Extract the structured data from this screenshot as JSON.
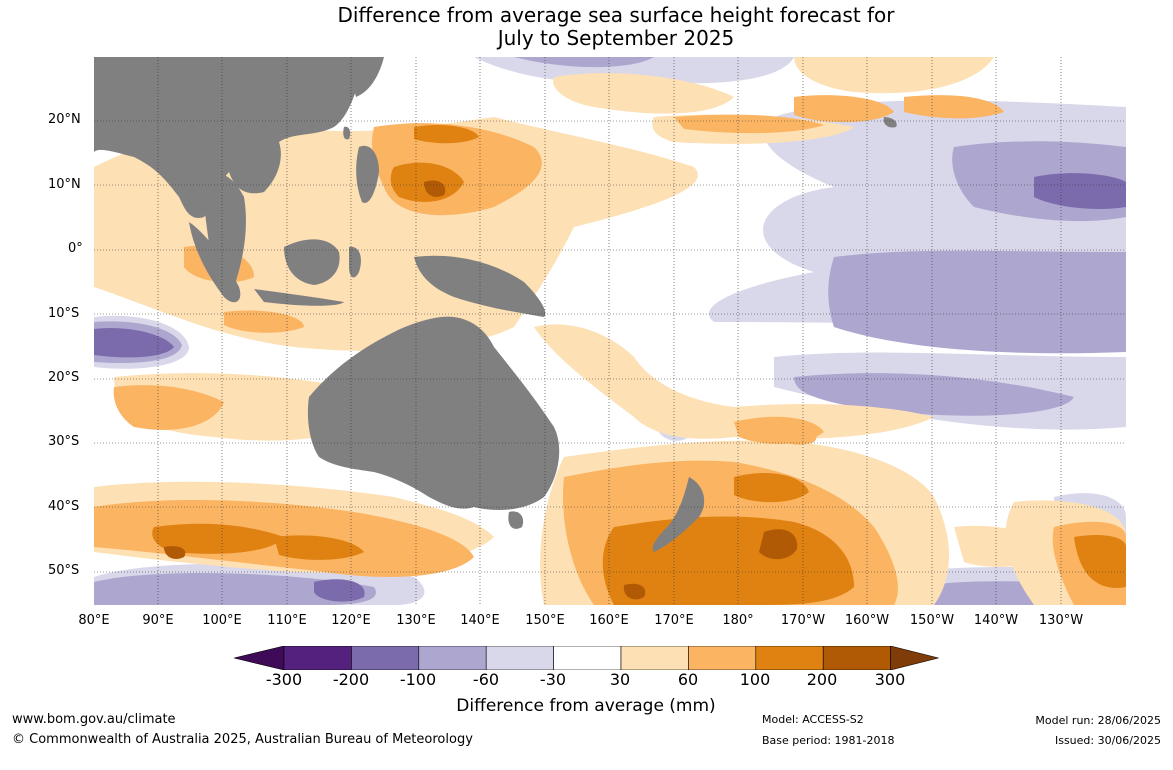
{
  "title_line1": "Difference from average sea surface height forecast for",
  "title_line2": "July to September 2025",
  "map": {
    "lon_labels": [
      "80°E",
      "90°E",
      "100°E",
      "110°E",
      "120°E",
      "130°E",
      "140°E",
      "150°E",
      "160°E",
      "170°E",
      "180°",
      "170°W",
      "160°W",
      "150°W",
      "140°W",
      "130°W"
    ],
    "lat_labels": [
      "20°N",
      "10°N",
      "0°",
      "10°S",
      "20°S",
      "30°S",
      "40°S",
      "50°S"
    ],
    "land_color": "#808080",
    "ocean_neutral_color": "#ffffff"
  },
  "colorbar": {
    "title": "Difference from average (mm)",
    "ticks": [
      "-300",
      "-200",
      "-100",
      "-60",
      "-30",
      "30",
      "60",
      "100",
      "200",
      "300"
    ],
    "colors": [
      "#3f0a57",
      "#55217f",
      "#7b6aac",
      "#ada6cf",
      "#d9d8ea",
      "#ffffff",
      "#fde0b4",
      "#fbb462",
      "#e08212",
      "#b15a06",
      "#7f3b08"
    ]
  },
  "footer": {
    "website": "www.bom.gov.au/climate",
    "copyright": "© Commonwealth of Australia 2025, Australian Bureau of Meteorology",
    "model": "Model: ACCESS-S2",
    "base_period": "Base period: 1981-2018",
    "model_run": "Model run: 28/06/2025",
    "issued": "Issued: 30/06/2025"
  }
}
